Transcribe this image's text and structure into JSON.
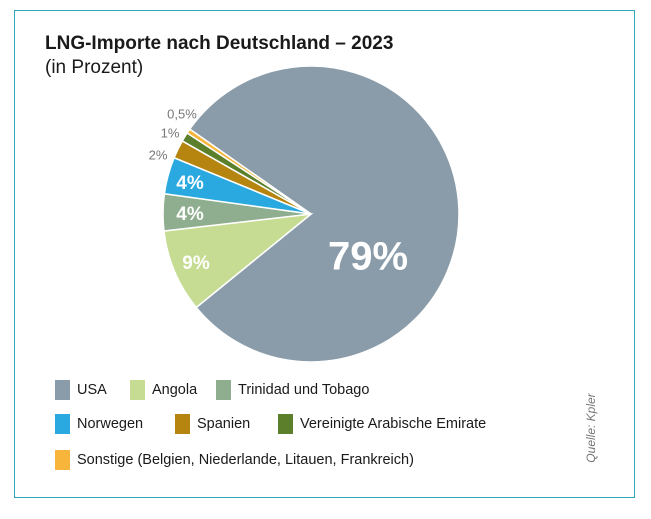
{
  "chart_data": {
    "type": "pie",
    "title": "LNG-Importe nach Deutschland – 2023",
    "subtitle": "(in Prozent)",
    "source": "Quelle: Kpler",
    "categories": [
      "USA",
      "Angola",
      "Trinidad und Tobago",
      "Norwegen",
      "Spanien",
      "Vereinigte Arabische Emirate",
      "Sonstige (Belgien, Niederlande, Litauen, Frankreich)"
    ],
    "values": [
      79,
      9,
      4,
      4,
      2,
      1,
      0.5
    ],
    "value_labels": [
      "79%",
      "9%",
      "4%",
      "4%",
      "2%",
      "1%",
      "0,5%"
    ],
    "colors": [
      "#8a9ca9",
      "#c6dc92",
      "#8fae8f",
      "#2aa9e0",
      "#b5850f",
      "#5b7f2b",
      "#f7b53b"
    ]
  }
}
